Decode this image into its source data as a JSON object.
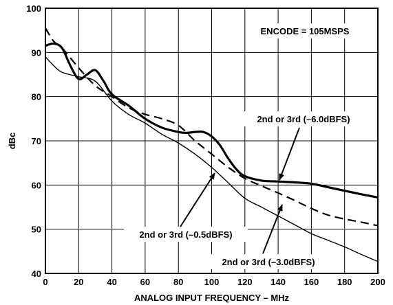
{
  "chart_data": {
    "type": "line",
    "title": "",
    "xlabel": "ANALOG INPUT FREQUENCY – MHz",
    "ylabel": "dBc",
    "xlim": [
      0,
      200
    ],
    "ylim": [
      40,
      100
    ],
    "x_ticks": [
      "0",
      "20",
      "40",
      "60",
      "80",
      "100",
      "120",
      "140",
      "160",
      "180",
      "200"
    ],
    "y_ticks": [
      "40",
      "50",
      "60",
      "70",
      "80",
      "90",
      "100"
    ],
    "grid": true,
    "legend": "none",
    "series": [
      {
        "line_style": "bold-solid",
        "x": [
          0,
          5,
          10,
          15,
          20,
          25,
          30,
          35,
          40,
          50,
          60,
          70,
          80,
          85,
          90,
          95,
          100,
          105,
          110,
          115,
          120,
          130,
          140,
          150,
          160,
          170,
          180,
          190,
          200
        ],
        "y": [
          91.5,
          92,
          91,
          87,
          84,
          85,
          86,
          83.5,
          80.5,
          78,
          75,
          73,
          72,
          71.8,
          72,
          72,
          71,
          69,
          66,
          63.5,
          62,
          61,
          60.8,
          60.6,
          60.3,
          59.5,
          58.7,
          57.9,
          57.2
        ]
      },
      {
        "line_style": "dashed",
        "x": [
          0,
          5,
          10,
          20,
          30,
          40,
          50,
          60,
          70,
          80,
          90,
          100,
          110,
          120,
          130,
          140,
          150,
          160,
          170,
          180,
          190,
          200
        ],
        "y": [
          95.5,
          92.5,
          91,
          86.5,
          82.5,
          80,
          77.5,
          76,
          75,
          73.5,
          70,
          67,
          64,
          61.5,
          59.8,
          58.2,
          56.5,
          54.7,
          53.2,
          52.3,
          51.6,
          50.8
        ]
      },
      {
        "line_style": "thin-solid",
        "x": [
          0,
          5,
          10,
          20,
          30,
          40,
          50,
          60,
          70,
          80,
          90,
          100,
          110,
          120,
          130,
          140,
          150,
          160,
          170,
          180,
          190,
          200
        ],
        "y": [
          89,
          87,
          85.5,
          84.5,
          83.5,
          79,
          76,
          74,
          71.5,
          69.5,
          67,
          64,
          60.5,
          57,
          55,
          53,
          51,
          49,
          47.5,
          46,
          44.3,
          42.7
        ]
      }
    ],
    "annotations": [
      {
        "text": "ENCODE = 105MSPS"
      },
      {
        "text": "2nd or 3rd (–6.0dBFS)"
      },
      {
        "text": "2nd or 3rd (–0.5dBFS)"
      },
      {
        "text": "2nd or 3rd (–3.0dBFS)"
      }
    ]
  }
}
